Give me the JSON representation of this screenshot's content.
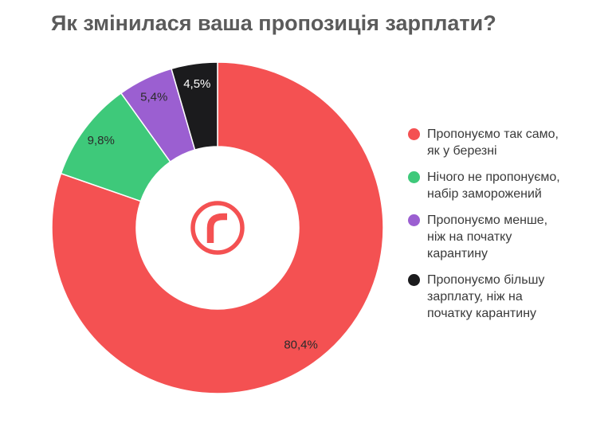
{
  "chart_data": {
    "type": "pie",
    "title": "Як змінилася ваша пропозиція зарплати?",
    "donut": true,
    "legend_position": "right",
    "slices": [
      {
        "label": "Пропонуємо так само,\nяк у березні",
        "value": 80.4,
        "value_label": "80,4%",
        "color": "#f45152"
      },
      {
        "label": "Нічого не пропонуємо,\nнабір заморожений",
        "value": 9.8,
        "value_label": "9,8%",
        "color": "#3ec97a"
      },
      {
        "label": "Пропонуємо менше,\nніж на початку\nкарантину",
        "value": 5.4,
        "value_label": "5,4%",
        "color": "#9b5fd1"
      },
      {
        "label": "Пропонуємо більшу\nзарплату, ніж на\nпочатку карантину",
        "value": 4.5,
        "value_label": "4,5%",
        "color": "#1b1b1d"
      }
    ]
  },
  "logo": {
    "letter": "r",
    "color": "#f45152"
  }
}
